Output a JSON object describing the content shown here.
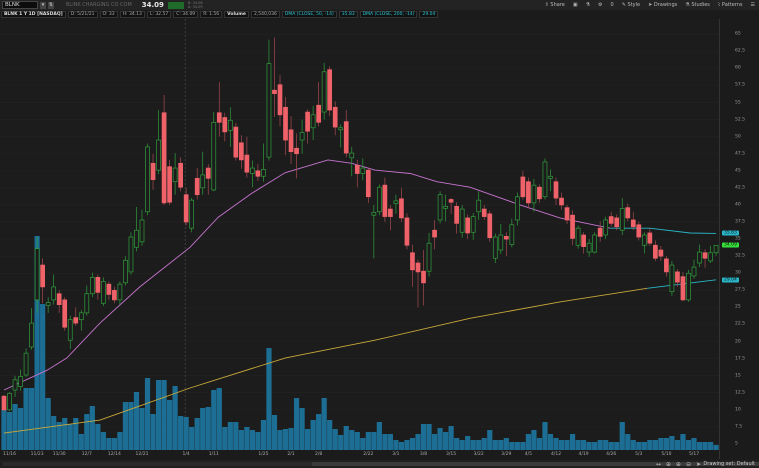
{
  "header": {
    "symbol": "BLNK",
    "company": "BLINK CHARGING CO COM",
    "last": "34.09",
    "bid": "B: 34.08",
    "ask": "A: 34.09",
    "change_color": "#1f6b2a"
  },
  "toolbar": {
    "share": "Share",
    "counter": "0",
    "style": "Style",
    "drawings": "Drawings",
    "studies": "Studies",
    "patterns": "Patterns"
  },
  "infobar": {
    "title": "BLNK 1 Y 1D [NASDAQ]",
    "date": "D: 5/21/21",
    "open": "O: 33",
    "high": "H: 34.13",
    "low": "L: 32.57",
    "close": "C: 34.09",
    "range": "R: 1.56",
    "volume_label": "Volume",
    "volume": "2,540,036",
    "dma50_label": "DMA (CLOSE, 50, -14)",
    "dma50_value": "35.83",
    "dma200_label": "DMA (CLOSE, 200, -14)",
    "dma200_value": "29.04"
  },
  "bottom": {
    "drawing_set": "Drawing set: Default"
  },
  "colors": {
    "up": "#2f9e3c",
    "down": "#f0626a",
    "volume": "#1d6e94",
    "dma50": "#c774d0",
    "dma200": "#c8a83a",
    "dma_recent": "#29b6c8",
    "last_badge": "#35e03a",
    "background": "#1b1b1b"
  },
  "chart_data": {
    "type": "candlestick",
    "ylim": [
      5,
      65
    ],
    "y_ticks": [
      "65",
      "62.5",
      "60",
      "57.5",
      "55",
      "52.5",
      "50",
      "47.5",
      "45",
      "42.5",
      "40",
      "37.5",
      "35",
      "32.5",
      "30",
      "27.5",
      "25",
      "22.5",
      "20",
      "17.5",
      "15",
      "12.5",
      "10",
      "7.5",
      "5"
    ],
    "x_ticks": [
      "11/16",
      "11/23",
      "11/30",
      "12/7",
      "12/14",
      "12/21",
      "1/4",
      "1/11",
      "1/18",
      "1/25",
      "2/1",
      "2/8",
      "2/15",
      "2/22",
      "3/1",
      "3/8",
      "3/15",
      "3/22",
      "3/29",
      "4/5",
      "4/12",
      "4/19",
      "4/26",
      "5/3",
      "5/10",
      "5/17"
    ],
    "dates": [
      "11/13",
      "11/16",
      "11/17",
      "11/18",
      "11/19",
      "11/20",
      "11/23",
      "11/24",
      "11/25",
      "11/27",
      "11/30",
      "12/1",
      "12/2",
      "12/3",
      "12/4",
      "12/7",
      "12/8",
      "12/9",
      "12/10",
      "12/11",
      "12/14",
      "12/15",
      "12/16",
      "12/17",
      "12/18",
      "12/21",
      "12/22",
      "12/23",
      "12/24",
      "12/28",
      "12/29",
      "12/30",
      "12/31",
      "1/4",
      "1/5",
      "1/6",
      "1/7",
      "1/8",
      "1/11",
      "1/12",
      "1/13",
      "1/14",
      "1/15",
      "1/19",
      "1/20",
      "1/21",
      "1/22",
      "1/25",
      "1/26",
      "1/27",
      "1/28",
      "1/29",
      "2/1",
      "2/2",
      "2/3",
      "2/4",
      "2/5",
      "2/8",
      "2/9",
      "2/10",
      "2/11",
      "2/12",
      "2/16",
      "2/17",
      "2/18",
      "2/19",
      "2/22",
      "2/23",
      "2/24",
      "2/25",
      "2/26",
      "3/1",
      "3/2",
      "3/3",
      "3/4",
      "3/5",
      "3/8",
      "3/9",
      "3/10",
      "3/11",
      "3/12",
      "3/15",
      "3/16",
      "3/17",
      "3/18",
      "3/19",
      "3/22",
      "3/23",
      "3/24",
      "3/25",
      "3/26",
      "3/29",
      "3/30",
      "3/31",
      "4/1",
      "4/5",
      "4/6",
      "4/7",
      "4/8",
      "4/9",
      "4/12",
      "4/13",
      "4/14",
      "4/15",
      "4/16",
      "4/19",
      "4/20",
      "4/21",
      "4/22",
      "4/23",
      "4/26",
      "4/27",
      "4/28",
      "4/29",
      "4/30",
      "5/3",
      "5/4",
      "5/5",
      "5/6",
      "5/7",
      "5/10",
      "5/11",
      "5/12",
      "5/13",
      "5/14",
      "5/17",
      "5/18",
      "5/19",
      "5/20",
      "5/21"
    ],
    "ohlc": [
      [
        12.0,
        12.2,
        9.8,
        10.0
      ],
      [
        10.0,
        12.6,
        9.8,
        12.4
      ],
      [
        12.9,
        15.0,
        11.9,
        14.4
      ],
      [
        13.4,
        15.9,
        12.8,
        14.9
      ],
      [
        15.1,
        19.0,
        14.8,
        18.3
      ],
      [
        19.2,
        24.9,
        18.8,
        22.7
      ],
      [
        26.1,
        35.3,
        24.2,
        33.6
      ],
      [
        31.2,
        32.2,
        25.6,
        28.0
      ],
      [
        25.3,
        26.5,
        24.2,
        25.7
      ],
      [
        26.1,
        29.8,
        25.4,
        28.0
      ],
      [
        27.0,
        27.5,
        24.2,
        25.4
      ],
      [
        26.1,
        26.5,
        21.6,
        22.1
      ],
      [
        20.2,
        23.8,
        18.9,
        23.2
      ],
      [
        23.5,
        25.0,
        22.3,
        22.7
      ],
      [
        23.2,
        24.6,
        21.6,
        24.2
      ],
      [
        24.2,
        28.2,
        23.8,
        27.0
      ],
      [
        27.0,
        30.1,
        26.5,
        29.4
      ],
      [
        29.4,
        29.8,
        26.1,
        27.2
      ],
      [
        25.6,
        29.4,
        25.2,
        28.8
      ],
      [
        28.4,
        28.8,
        26.1,
        26.9
      ],
      [
        27.5,
        28.0,
        25.6,
        26.1
      ],
      [
        26.1,
        28.8,
        25.4,
        28.4
      ],
      [
        28.6,
        32.5,
        28.2,
        31.9
      ],
      [
        30.2,
        36.0,
        29.8,
        35.3
      ],
      [
        33.8,
        39.7,
        33.2,
        36.3
      ],
      [
        34.6,
        39.3,
        34.0,
        37.8
      ],
      [
        39.0,
        49.0,
        38.5,
        48.5
      ],
      [
        46.1,
        47.5,
        42.2,
        43.7
      ],
      [
        45.1,
        53.9,
        44.5,
        49.5
      ],
      [
        53.5,
        56.1,
        40.0,
        40.3
      ],
      [
        45.6,
        46.6,
        40.0,
        40.4
      ],
      [
        43.4,
        47.6,
        41.5,
        45.4
      ],
      [
        46.1,
        47.0,
        42.0,
        42.6
      ],
      [
        41.5,
        42.5,
        37.0,
        37.5
      ],
      [
        36.6,
        41.0,
        36.0,
        40.7
      ],
      [
        43.9,
        45.4,
        40.8,
        41.5
      ],
      [
        42.5,
        47.8,
        41.5,
        44.4
      ],
      [
        45.4,
        46.0,
        41.5,
        43.9
      ],
      [
        42.2,
        53.6,
        42.0,
        52.1
      ],
      [
        53.5,
        58.0,
        50.0,
        52.1
      ],
      [
        52.8,
        53.5,
        49.3,
        50.7
      ],
      [
        50.9,
        54.3,
        48.5,
        52.4
      ],
      [
        51.4,
        52.0,
        46.5,
        47.0
      ],
      [
        49.1,
        50.2,
        45.3,
        46.6
      ],
      [
        47.3,
        50.0,
        44.0,
        44.8
      ],
      [
        44.6,
        46.5,
        42.6,
        45.4
      ],
      [
        45.0,
        46.0,
        43.5,
        44.2
      ],
      [
        44.2,
        49.0,
        43.4,
        45.2
      ],
      [
        47.0,
        64.2,
        46.5,
        60.7
      ],
      [
        56.8,
        64.5,
        52.9,
        56.3
      ],
      [
        57.6,
        59.0,
        51.5,
        53.2
      ],
      [
        54.3,
        55.8,
        47.3,
        49.5
      ],
      [
        51.0,
        53.0,
        46.0,
        47.8
      ],
      [
        48.3,
        50.5,
        43.9,
        47.5
      ],
      [
        49.5,
        52.5,
        47.5,
        50.6
      ],
      [
        53.6,
        54.0,
        49.0,
        50.8
      ],
      [
        51.3,
        54.5,
        49.5,
        53.2
      ],
      [
        54.6,
        58.0,
        51.5,
        52.1
      ],
      [
        53.6,
        60.8,
        52.5,
        59.5
      ],
      [
        59.8,
        60.3,
        53.0,
        53.9
      ],
      [
        54.3,
        55.2,
        50.2,
        51.4
      ],
      [
        51.0,
        51.8,
        48.4,
        51.3
      ],
      [
        52.2,
        53.9,
        47.0,
        47.6
      ],
      [
        46.9,
        48.5,
        44.2,
        47.6
      ],
      [
        45.8,
        46.6,
        42.6,
        44.6
      ],
      [
        44.6,
        46.8,
        43.6,
        45.4
      ],
      [
        45.1,
        45.5,
        40.3,
        41.2
      ],
      [
        38.5,
        40.0,
        32.2,
        38.9
      ],
      [
        39.0,
        43.0,
        38.5,
        42.6
      ],
      [
        42.9,
        44.0,
        37.5,
        38.3
      ],
      [
        39.4,
        40.0,
        36.3,
        38.3
      ],
      [
        40.2,
        41.5,
        38.7,
        40.6
      ],
      [
        40.9,
        42.5,
        37.5,
        38.1
      ],
      [
        38.1,
        38.8,
        33.5,
        34.1
      ],
      [
        33.0,
        34.2,
        28.0,
        30.5
      ],
      [
        31.5,
        32.0,
        25.0,
        30.2
      ],
      [
        30.3,
        33.4,
        25.3,
        28.6
      ],
      [
        30.3,
        35.9,
        29.5,
        34.4
      ],
      [
        36.3,
        37.8,
        33.5,
        35.3
      ],
      [
        37.8,
        42.0,
        37.3,
        41.5
      ],
      [
        39.5,
        41.5,
        37.6,
        39.8
      ],
      [
        40.8,
        41.0,
        38.7,
        40.4
      ],
      [
        39.8,
        40.4,
        35.8,
        37.3
      ],
      [
        36.0,
        40.0,
        35.2,
        39.4
      ],
      [
        38.1,
        38.6,
        35.0,
        35.9
      ],
      [
        36.0,
        38.8,
        34.9,
        38.3
      ],
      [
        39.0,
        42.0,
        37.8,
        40.7
      ],
      [
        39.4,
        40.0,
        37.8,
        38.3
      ],
      [
        38.7,
        39.2,
        34.6,
        35.2
      ],
      [
        32.2,
        35.8,
        31.5,
        35.3
      ],
      [
        33.4,
        37.2,
        32.8,
        35.6
      ],
      [
        35.4,
        36.0,
        32.5,
        35.0
      ],
      [
        34.2,
        38.0,
        33.8,
        37.1
      ],
      [
        37.8,
        41.8,
        37.0,
        41.2
      ],
      [
        44.1,
        45.0,
        40.8,
        41.2
      ],
      [
        43.4,
        44.0,
        39.5,
        40.3
      ],
      [
        40.3,
        43.8,
        39.0,
        42.9
      ],
      [
        42.6,
        43.0,
        40.3,
        40.9
      ],
      [
        41.2,
        46.8,
        40.8,
        46.3
      ],
      [
        43.9,
        45.2,
        42.0,
        44.2
      ],
      [
        43.4,
        44.0,
        40.0,
        41.0
      ],
      [
        41.0,
        41.8,
        39.3,
        40.0
      ],
      [
        39.6,
        40.0,
        37.2,
        37.8
      ],
      [
        38.5,
        39.2,
        34.1,
        35.1
      ],
      [
        34.1,
        37.0,
        33.6,
        36.6
      ],
      [
        35.6,
        36.0,
        32.9,
        33.9
      ],
      [
        33.1,
        35.0,
        32.4,
        34.4
      ],
      [
        33.1,
        36.0,
        32.9,
        35.6
      ],
      [
        36.6,
        37.6,
        34.6,
        35.4
      ],
      [
        35.6,
        38.3,
        35.0,
        37.8
      ],
      [
        38.3,
        39.0,
        36.8,
        37.3
      ],
      [
        38.1,
        38.6,
        36.3,
        36.8
      ],
      [
        36.3,
        41.0,
        35.6,
        39.5
      ],
      [
        39.6,
        40.2,
        37.6,
        38.1
      ],
      [
        37.8,
        39.0,
        36.3,
        36.8
      ],
      [
        37.1,
        37.6,
        34.8,
        35.3
      ],
      [
        34.1,
        36.0,
        32.9,
        35.6
      ],
      [
        35.9,
        36.6,
        34.0,
        34.4
      ],
      [
        34.1,
        34.8,
        31.8,
        32.2
      ],
      [
        33.4,
        34.0,
        31.8,
        32.5
      ],
      [
        32.1,
        32.5,
        29.5,
        30.2
      ],
      [
        27.3,
        31.8,
        26.7,
        31.2
      ],
      [
        30.2,
        30.6,
        28.0,
        28.7
      ],
      [
        29.5,
        30.2,
        25.9,
        26.1
      ],
      [
        26.1,
        30.5,
        25.8,
        30.0
      ],
      [
        29.6,
        32.0,
        29.2,
        30.9
      ],
      [
        31.5,
        34.2,
        30.9,
        33.1
      ],
      [
        33.0,
        33.5,
        30.8,
        32.2
      ],
      [
        31.8,
        34.0,
        31.5,
        33.0
      ],
      [
        33.0,
        34.13,
        32.57,
        34.09
      ]
    ],
    "volume_millions": [
      20,
      19,
      23,
      21,
      31,
      31,
      107,
      73,
      26,
      17,
      14,
      16,
      13,
      16,
      8,
      18,
      22,
      13,
      9,
      6,
      6,
      9,
      24,
      24,
      29,
      21,
      36,
      18,
      35,
      35,
      25,
      32,
      17,
      16.5,
      11.5,
      16,
      21,
      21.5,
      30,
      31,
      11.5,
      14,
      14,
      10,
      11.5,
      10,
      9,
      15,
      51,
      17.5,
      10,
      10.5,
      11,
      26,
      21,
      10.5,
      15,
      18,
      26,
      15,
      10.5,
      7.5,
      12,
      10,
      9,
      6,
      9,
      9,
      14,
      8,
      8,
      5,
      4,
      5,
      6,
      8,
      13,
      13,
      8,
      11,
      9,
      12,
      6,
      5,
      7,
      5,
      5,
      6,
      10,
      5,
      5,
      6,
      4,
      4,
      4,
      8,
      10,
      6,
      14,
      8,
      6,
      5,
      5,
      8,
      5,
      5,
      4,
      4,
      5,
      5,
      4,
      4,
      14,
      8,
      5,
      4,
      4,
      5,
      5,
      6,
      6,
      7,
      5,
      8,
      5,
      6,
      4,
      4,
      4,
      2.54
    ],
    "series": [
      {
        "name": "DMA (CLOSE, 50, -14)",
        "points": [
          [
            0,
            12.9
          ],
          [
            7.8,
            15.8
          ],
          [
            11.4,
            17.6
          ],
          [
            17.4,
            22.7
          ],
          [
            24.6,
            28.0
          ],
          [
            33.7,
            33.8
          ],
          [
            38.8,
            38.2
          ],
          [
            44.9,
            41.7
          ],
          [
            50.9,
            44.7
          ],
          [
            58.7,
            46.6
          ],
          [
            63,
            46.1
          ],
          [
            67.2,
            45.1
          ],
          [
            73.6,
            44.6
          ],
          [
            78.4,
            43.4
          ],
          [
            84.4,
            42.6
          ],
          [
            93.5,
            40.0
          ],
          [
            100.7,
            38.1
          ],
          [
            109.8,
            36.6
          ],
          [
            117,
            36.6
          ],
          [
            124.3,
            35.9
          ],
          [
            129,
            35.83
          ]
        ],
        "recent_from_index": 113
      },
      {
        "name": "DMA (CLOSE, 200, -14)",
        "points": [
          [
            0,
            6.6
          ],
          [
            17.4,
            8.5
          ],
          [
            33.7,
            13.2
          ],
          [
            51,
            17.6
          ],
          [
            67.2,
            20.2
          ],
          [
            84.4,
            23.4
          ],
          [
            100.7,
            25.8
          ],
          [
            116.5,
            27.8
          ],
          [
            129,
            29.04
          ]
        ],
        "recent_from_index": 116.5
      }
    ]
  }
}
